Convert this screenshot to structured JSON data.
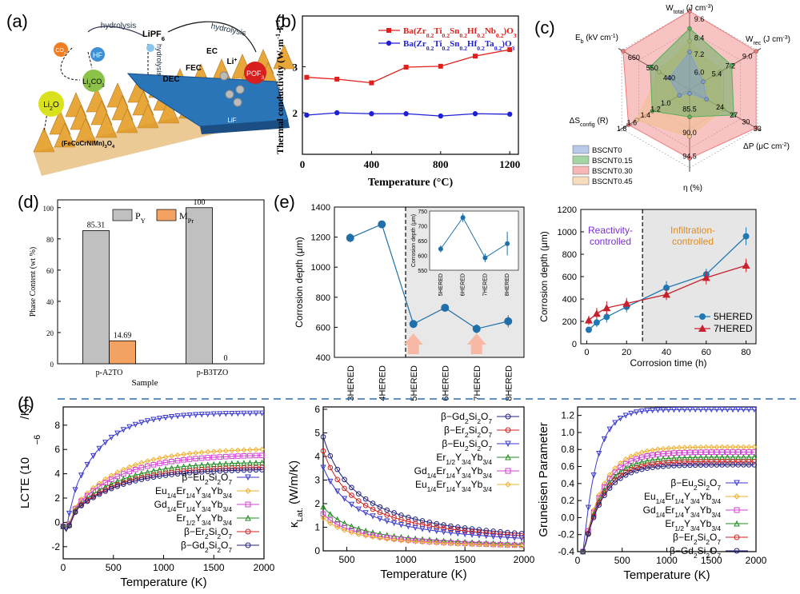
{
  "panels": {
    "a": {
      "letter": "(a)",
      "labels": {
        "hydrolysis_left": "hydrolysis",
        "lipf6": "LiPF6",
        "hydrolysis_right": "hydrolysis",
        "hydrolysis_vert": "hydrolysis",
        "co2": "CO2",
        "hf": "HF",
        "li2co3": "Li2CO3",
        "dec": "DEC",
        "fec": "FEC",
        "ec": "EC",
        "li_plus": "Li+",
        "pof3": "POF3",
        "li2o": "Li2O",
        "lif": "LiF",
        "oxide": "(FeCoCrNiMn)3O4"
      }
    },
    "b": {
      "letter": "(b)"
    },
    "c": {
      "letter": "(c)"
    },
    "d": {
      "letter": "(d)"
    },
    "e": {
      "letter": "(e)",
      "region_left": "Reactivity-controlled",
      "region_right": "Infiltration-controlled"
    },
    "f": {
      "letter": "(f)"
    }
  },
  "chart_data": [
    {
      "id": "b",
      "type": "line",
      "xlabel": "Temperature (°C)",
      "ylabel": "Thermal conductivity (W·m⁻¹·k⁻¹)",
      "xlim": [
        0,
        1250
      ],
      "ylim": [
        1.1,
        4.1
      ],
      "xticks": [
        0,
        400,
        800,
        1200
      ],
      "yticks": [
        2,
        3
      ],
      "x": [
        25,
        200,
        400,
        600,
        800,
        1000,
        1200
      ],
      "series": [
        {
          "name": "Ba(Zr0.2Ti0.2Sn0.2Hf0.2Nb0.2)O3",
          "color": "#e0201b",
          "values": [
            2.77,
            2.73,
            2.65,
            2.99,
            3.01,
            3.23,
            3.37
          ]
        },
        {
          "name": "Ba(Zr0.2Ti0.2Sn0.2Hf0.2Ta0.2)O3",
          "color": "#1f1fd6",
          "values": [
            1.95,
            2.0,
            1.98,
            1.98,
            1.93,
            1.98,
            1.97
          ]
        }
      ]
    },
    {
      "id": "c",
      "type": "radar",
      "axes": [
        {
          "label": "Wtotal (J cm⁻³)",
          "ticks": [
            "8.4",
            "7.2",
            "6.0",
            "9.6"
          ]
        },
        {
          "label": "Wrec (J cm⁻³)",
          "ticks": [
            "5.4",
            "7.2",
            "9.0"
          ]
        },
        {
          "label": "ΔP (μC cm⁻²)",
          "ticks": [
            "24",
            "27",
            "30",
            "33"
          ]
        },
        {
          "label": "η (%)",
          "ticks": [
            "85.5",
            "90.0",
            "94.5"
          ]
        },
        {
          "label": "ΔSconfig (R)",
          "ticks": [
            "1.0",
            "1.2",
            "1.4",
            "1.6",
            "1.8"
          ]
        },
        {
          "label": "Eb (kV cm⁻¹)",
          "ticks": [
            "440",
            "550",
            "660"
          ]
        }
      ],
      "series": [
        {
          "name": "BSCNT0",
          "color": "#7f9cd6",
          "values": [
            0.48,
            0.2,
            0.25,
            0.05,
            0.15,
            0.3
          ]
        },
        {
          "name": "BSCNT0.15",
          "color": "#57b05a",
          "values": [
            0.78,
            0.62,
            0.65,
            0.35,
            0.55,
            0.58
          ]
        },
        {
          "name": "BSCNT0.30",
          "color": "#ef7a7a",
          "values": [
            1.0,
            0.98,
            0.98,
            0.88,
            0.9,
            0.98
          ]
        },
        {
          "name": "BSCNT0.45",
          "color": "#f2c08a",
          "values": [
            0.62,
            0.45,
            0.5,
            0.6,
            0.78,
            0.45
          ]
        }
      ]
    },
    {
      "id": "d",
      "type": "bar",
      "xlabel": "Sample",
      "ylabel": "Phase Content (wt %)",
      "categories": [
        "p-A2TO",
        "p-B3TZO"
      ],
      "ylim": [
        0,
        105
      ],
      "yticks": [
        0,
        20,
        40,
        60,
        80,
        100
      ],
      "series": [
        {
          "name": "PY",
          "color": "#c0c0c0",
          "values": [
            85.31,
            100
          ]
        },
        {
          "name": "MPr",
          "color": "#f4a261",
          "values": [
            14.69,
            0
          ]
        }
      ],
      "value_labels": [
        [
          "85.31",
          "100"
        ],
        [
          "14.69",
          "0"
        ]
      ]
    },
    {
      "id": "e1",
      "type": "scatter",
      "ylabel": "Corrosion depth (μm)",
      "ylim": [
        400,
        1400
      ],
      "yticks": [
        400,
        600,
        800,
        1000,
        1200,
        1400
      ],
      "categories": [
        "3HERED",
        "4HERED",
        "5HERED",
        "6HERED",
        "7HERED",
        "8HERED"
      ],
      "values": [
        1195,
        1285,
        622,
        730,
        590,
        640
      ],
      "errors": [
        30,
        25,
        25,
        20,
        30,
        40
      ],
      "inset": {
        "ylabel": "Corrosion depth (μm)",
        "ylim": [
          550,
          750
        ],
        "yticks": [
          550,
          600,
          650,
          700,
          750
        ],
        "categories": [
          "5HERED",
          "6HERED",
          "7HERED",
          "8HERED"
        ],
        "values": [
          622,
          728,
          592,
          640
        ],
        "errors": [
          12,
          15,
          15,
          40
        ]
      }
    },
    {
      "id": "e2",
      "type": "line",
      "xlabel": "Corrosion time (h)",
      "ylabel": "Corrosion depth (μm)",
      "xlim": [
        -3,
        85
      ],
      "ylim": [
        0,
        1200
      ],
      "xticks": [
        0,
        20,
        40,
        60,
        80
      ],
      "yticks": [
        0,
        200,
        400,
        600,
        800,
        1000,
        1200
      ],
      "x": [
        1,
        5,
        10,
        20,
        40,
        60,
        80
      ],
      "series": [
        {
          "name": "5HERED",
          "color": "#1f77b4",
          "values": [
            125,
            190,
            240,
            330,
            500,
            620,
            960
          ],
          "errors": [
            20,
            40,
            50,
            50,
            60,
            50,
            80
          ]
        },
        {
          "name": "7HERED",
          "color": "#c9202d",
          "values": [
            210,
            270,
            320,
            360,
            440,
            590,
            700
          ],
          "errors": [
            40,
            50,
            60,
            50,
            50,
            60,
            60
          ]
        }
      ]
    },
    {
      "id": "f1",
      "type": "line",
      "xlabel": "Temperature (K)",
      "ylabel": "LCTE (10⁻⁶/K)",
      "xlim": [
        0,
        2000
      ],
      "ylim": [
        -3,
        9.5
      ],
      "xticks": [
        0,
        500,
        1000,
        1500,
        2000
      ],
      "yticks": [
        -2,
        0,
        2,
        4,
        6,
        8
      ],
      "series": [
        {
          "name": "β−Eu2Si2O7",
          "color": "#3a3acc",
          "marker": "tri-down",
          "plateau": 9.0,
          "k": 320
        },
        {
          "name": "Eu1/4Er1/4Y3/4Yb3/4",
          "color": "#f0b030",
          "marker": "diamond",
          "plateau": 6.1,
          "k": 480
        },
        {
          "name": "Gd1/4Er1/4Y3/4Yb3/4",
          "color": "#d040d0",
          "marker": "square",
          "plateau": 5.6,
          "k": 480
        },
        {
          "name": "Er1/2Y3/4Yb3/4",
          "color": "#208a20",
          "marker": "tri-up",
          "plateau": 5.0,
          "k": 480
        },
        {
          "name": "β−Er2Si2O7",
          "color": "#d02020",
          "marker": "circle",
          "plateau": 4.6,
          "k": 480
        },
        {
          "name": "β−Gd2Si2O7",
          "color": "#202080",
          "marker": "circle",
          "plateau": 4.4,
          "k": 480
        }
      ]
    },
    {
      "id": "f2",
      "type": "line",
      "xlabel": "Temperature (K)",
      "ylabel": "κLat. (W/m/K)",
      "xlim": [
        300,
        2000
      ],
      "ylim": [
        0,
        6.1
      ],
      "xticks": [
        500,
        1000,
        1500,
        2000
      ],
      "yticks": [
        0,
        1,
        2,
        3,
        4,
        5,
        6
      ],
      "series": [
        {
          "name": "β−Gd2Si2O7",
          "color": "#202080",
          "marker": "circle",
          "a": 1450
        },
        {
          "name": "β−Er2Si2O7",
          "color": "#d02020",
          "marker": "circle",
          "a": 1270
        },
        {
          "name": "β−Eu2Si2O7",
          "color": "#3a3acc",
          "marker": "tri-down",
          "a": 1060
        },
        {
          "name": "Er1/2Y3/4Yb3/4",
          "color": "#208a20",
          "marker": "tri-up",
          "a": 560
        },
        {
          "name": "Gd1/4Er1/4Y3/4Yb3/4",
          "color": "#d040d0",
          "marker": "square",
          "a": 470
        },
        {
          "name": "Eu1/4Er1/4Y3/4Yb3/4",
          "color": "#f0b030",
          "marker": "diamond",
          "a": 420
        }
      ]
    },
    {
      "id": "f3",
      "type": "line",
      "xlabel": "Temperature (K)",
      "ylabel": "Gruneisen Parameter",
      "xlim": [
        0,
        2000
      ],
      "ylim": [
        -0.4,
        1.3
      ],
      "xticks": [
        0,
        500,
        1000,
        1500,
        2000
      ],
      "yticks": [
        -0.4,
        -0.2,
        0.0,
        0.2,
        0.4,
        0.6,
        0.8,
        1.0,
        1.2
      ],
      "series": [
        {
          "name": "β−Eu2Si2O7",
          "color": "#3a3acc",
          "marker": "tri-down",
          "plateau": 1.27,
          "k": 150
        },
        {
          "name": "Eu1/4Er1/4Y3/4Yb3/4",
          "color": "#f0b030",
          "marker": "diamond",
          "plateau": 0.83,
          "k": 220
        },
        {
          "name": "Gd1/4Er1/4Y3/4Yb3/4",
          "color": "#d040d0",
          "marker": "square",
          "plateau": 0.77,
          "k": 220
        },
        {
          "name": "Er1/2Y3/4Yb3/4",
          "color": "#208a20",
          "marker": "tri-up",
          "plateau": 0.71,
          "k": 220
        },
        {
          "name": "β−Er2Si2O7",
          "color": "#d02020",
          "marker": "circle",
          "plateau": 0.66,
          "k": 220
        },
        {
          "name": "β−Gd2Si2O7",
          "color": "#202080",
          "marker": "circle",
          "plateau": 0.62,
          "k": 220
        }
      ]
    }
  ]
}
